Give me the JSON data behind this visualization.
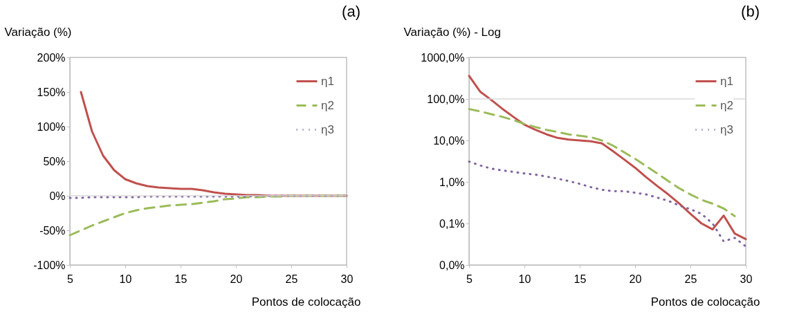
{
  "chart_data": [
    {
      "type": "line",
      "title": "(a)",
      "xlabel": "Pontos de colocação",
      "ylabel": "Variação (%)",
      "x": [
        5,
        6,
        7,
        8,
        9,
        10,
        11,
        12,
        13,
        14,
        15,
        16,
        17,
        18,
        19,
        20,
        21,
        22,
        23,
        24,
        25,
        26,
        27,
        28,
        29,
        30
      ],
      "xlim": [
        5,
        30
      ],
      "xticks": [
        5,
        10,
        15,
        20,
        25,
        30
      ],
      "ylim": [
        -100,
        200
      ],
      "yticks": [
        {
          "value": -100,
          "label": "-100%"
        },
        {
          "value": -50,
          "label": "-50%"
        },
        {
          "value": 0,
          "label": "0%"
        },
        {
          "value": 50,
          "label": "50%"
        },
        {
          "value": 100,
          "label": "100%"
        },
        {
          "value": 150,
          "label": "150%"
        },
        {
          "value": 200,
          "label": "200%"
        }
      ],
      "grid": false,
      "legend": "top right",
      "marker": "none",
      "ref_lines": [
        {
          "axis": "y",
          "value": 0,
          "color": "#d9d9d9"
        }
      ],
      "series": [
        {
          "name": "η1",
          "color": "#c0504d",
          "line_style": "solid",
          "values": [
            null,
            150,
            93,
            58,
            37,
            24,
            18,
            14,
            12,
            11,
            10,
            10,
            8,
            5,
            3,
            2,
            1,
            1,
            0,
            0,
            0,
            0,
            0,
            0,
            0,
            0
          ]
        },
        {
          "name": "η2",
          "color": "#9bbb59",
          "line_style": "dashed",
          "values": [
            -57,
            -50,
            -43,
            -37,
            -31,
            -25,
            -21,
            -18,
            -16,
            -14,
            -13,
            -12,
            -10,
            -8,
            -5,
            -4,
            -2,
            -2,
            -1,
            -1,
            0,
            0,
            0,
            0,
            0,
            0
          ]
        },
        {
          "name": "η3",
          "color": "#8064a2",
          "line_style": "dotted",
          "values": [
            -3,
            -3,
            -2,
            -2,
            -2,
            -2,
            -2,
            -1,
            -1,
            -1,
            -1,
            -1,
            -1,
            -1,
            -1,
            -1,
            -1,
            0,
            0,
            0,
            0,
            0,
            0,
            0,
            0,
            0
          ]
        }
      ]
    },
    {
      "type": "line",
      "title": "(b)",
      "xlabel": "Pontos de colocação",
      "ylabel": "Variação (%) - Log",
      "xlim": [
        5,
        30
      ],
      "xticks": [
        5,
        10,
        15,
        20,
        25,
        30
      ],
      "ylim": [
        0.01,
        1000
      ],
      "log": true,
      "yticks": [
        {
          "value": 0.01,
          "label": "0,0%"
        },
        {
          "value": 0.1,
          "label": "0,1%"
        },
        {
          "value": 1,
          "label": "1,0%"
        },
        {
          "value": 10,
          "label": "10,0%"
        },
        {
          "value": 100,
          "label": "100,0%"
        },
        {
          "value": 1000,
          "label": "1000,0%"
        }
      ],
      "grid": false,
      "legend": "top right",
      "marker": "none",
      "ref_lines": [
        {
          "axis": "y",
          "value": 100,
          "color": "#d9d9d9"
        }
      ],
      "series": [
        {
          "name": "η1",
          "color": "#c0504d",
          "line_style": "solid",
          "x": [
            5,
            6,
            7,
            8,
            9,
            10,
            11,
            12,
            13,
            14,
            15,
            16,
            17,
            18,
            19,
            20,
            21,
            22,
            23,
            24,
            25,
            26,
            27,
            28,
            29,
            30
          ],
          "values": [
            360,
            150,
            95,
            58,
            37,
            24,
            18,
            14,
            11.5,
            10.5,
            10,
            9.5,
            8.5,
            5.5,
            3.5,
            2.2,
            1.3,
            0.8,
            0.5,
            0.3,
            0.17,
            0.1,
            0.072,
            0.155,
            0.057,
            0.042
          ]
        },
        {
          "name": "η2",
          "color": "#9bbb59",
          "line_style": "dashed",
          "x": [
            5,
            6,
            7,
            8,
            9,
            10,
            11,
            12,
            13,
            14,
            15,
            16,
            17,
            18,
            19,
            20,
            21,
            22,
            23,
            24,
            25,
            26,
            27,
            28,
            29
          ],
          "values": [
            57,
            50,
            43,
            37,
            31,
            25,
            21,
            18,
            16,
            14,
            13,
            12,
            10,
            7.5,
            5.2,
            3.6,
            2.4,
            1.6,
            1.05,
            0.7,
            0.5,
            0.37,
            0.3,
            0.23,
            0.15
          ]
        },
        {
          "name": "η3",
          "color": "#8064a2",
          "line_style": "dotted",
          "x": [
            5,
            6,
            7,
            8,
            9,
            10,
            11,
            12,
            13,
            14,
            15,
            16,
            17,
            18,
            19,
            20,
            21,
            22,
            23,
            24,
            25,
            26,
            27,
            28,
            29,
            30
          ],
          "values": [
            3.1,
            2.5,
            2.1,
            1.9,
            1.75,
            1.6,
            1.5,
            1.35,
            1.2,
            1.05,
            0.9,
            0.75,
            0.65,
            0.6,
            0.6,
            0.55,
            0.5,
            0.42,
            0.35,
            0.27,
            0.22,
            0.17,
            0.1,
            0.037,
            0.045,
            0.028
          ]
        }
      ]
    }
  ]
}
